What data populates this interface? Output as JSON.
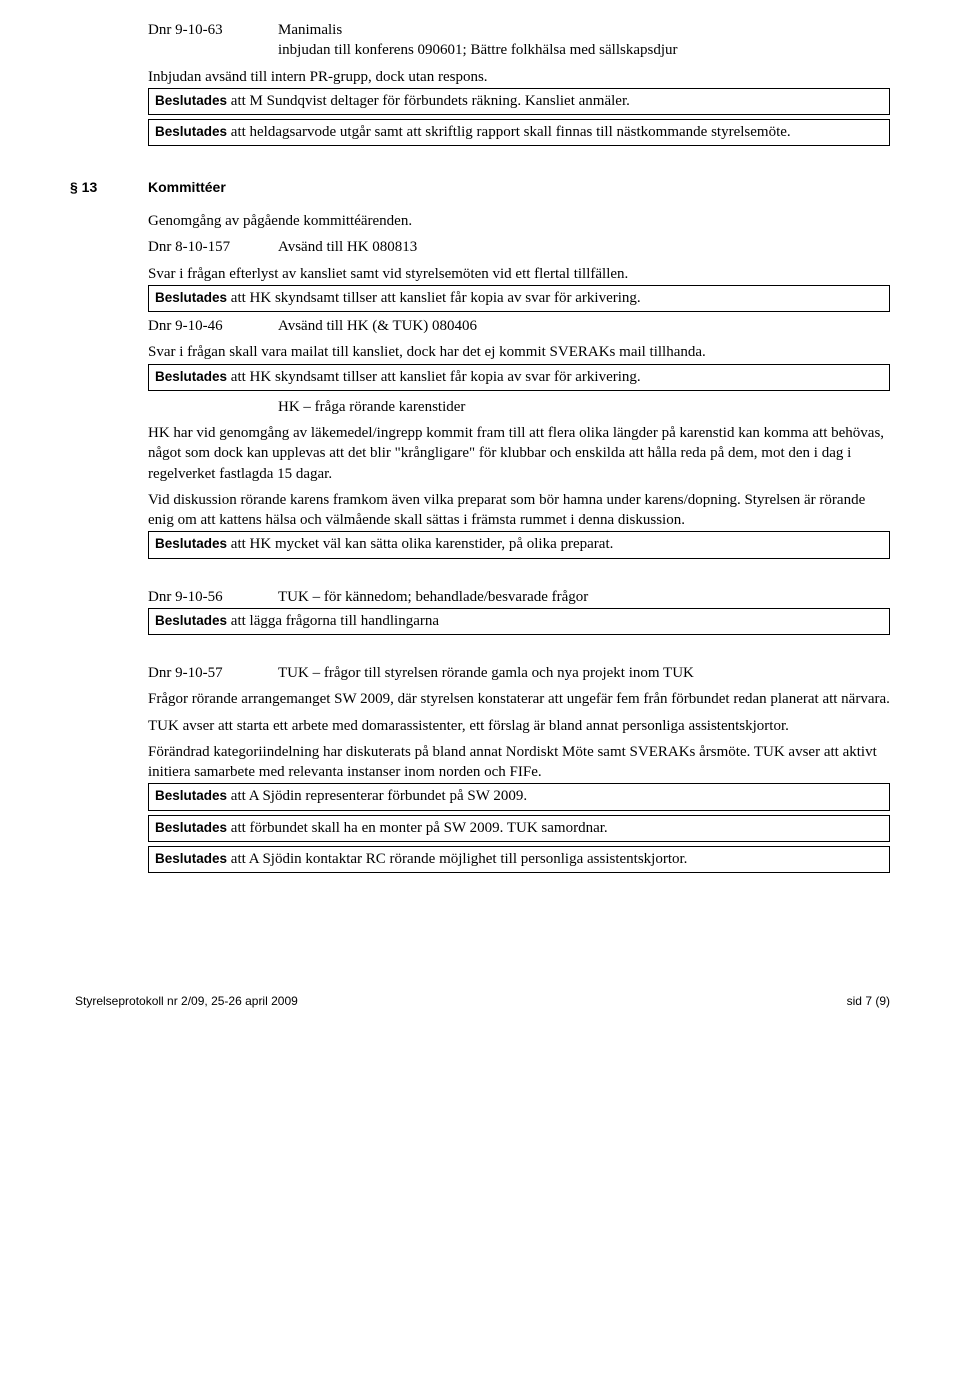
{
  "top": {
    "dnr1_code": "Dnr 9-10-63",
    "dnr1_title": "Manimalis",
    "dnr1_sub": "inbjudan till konferens 090601; Bättre folkhälsa med sällskapsdjur",
    "line1": "Inbjudan avsänd till intern PR-grupp, dock utan respons.",
    "box1_bold": "Beslutades",
    "box1_rest": " att M Sundqvist deltager för förbundets räkning. Kansliet anmäler.",
    "box2_bold": "Beslutades",
    "box2_rest": " att heldagsarvode utgår samt att skriftlig rapport skall finnas till nästkommande styrelsemöte."
  },
  "section13": {
    "num": "§ 13",
    "title": "Kommittéer",
    "p1": "Genomgång av pågående kommittéärenden.",
    "dnr2_code": "Dnr 8-10-157",
    "dnr2_text": "Avsänd till HK 080813",
    "p2": "Svar i frågan efterlyst av kansliet samt vid styrelsemöten vid ett flertal tillfällen.",
    "box3_bold": "Beslutades",
    "box3_rest": " att HK skyndsamt tillser att kansliet får kopia av svar för arkivering.",
    "dnr3_code": "Dnr 9-10-46",
    "dnr3_text": "Avsänd till HK (& TUK)  080406",
    "p3": "Svar i frågan skall vara mailat till kansliet, dock har det ej kommit SVERAKs mail tillhanda.",
    "box4_bold": "Beslutades",
    "box4_rest": " att HK skyndsamt tillser att kansliet får kopia av svar för arkivering.",
    "hk_heading": "HK – fråga rörande karenstider",
    "p4": "HK har vid genomgång av läkemedel/ingrepp kommit fram till att flera olika längder på karenstid kan komma att behövas, något som dock kan upplevas att det blir \"krångligare\" för klubbar och enskilda att hålla reda på dem, mot den i dag i regelverket fastlagda 15 dagar.",
    "p5": "Vid diskussion rörande karens framkom även vilka preparat som bör hamna under karens/dopning. Styrelsen är rörande enig om att kattens hälsa och välmående skall sättas i främsta rummet i denna diskussion.",
    "box5_bold": "Beslutades",
    "box5_rest": " att HK mycket väl kan sätta olika karenstider, på olika preparat.",
    "dnr4_code": "Dnr 9-10-56",
    "dnr4_text": "TUK – för kännedom; behandlade/besvarade frågor",
    "box6_bold": "Beslutades",
    "box6_rest": " att lägga frågorna till handlingarna",
    "dnr5_code": "Dnr 9-10-57",
    "dnr5_text": "TUK – frågor till styrelsen rörande gamla och nya projekt inom TUK",
    "p6": "Frågor rörande arrangemanget SW 2009, där styrelsen konstaterar att ungefär fem från förbundet redan planerat att närvara.",
    "p7": "TUK avser att starta ett arbete med domarassistenter, ett förslag är bland annat personliga assistentskjortor.",
    "p8": "Förändrad kategoriindelning har diskuterats på bland annat Nordiskt Möte samt SVERAKs årsmöte. TUK avser att aktivt initiera samarbete med relevanta instanser inom norden och FIFe.",
    "box7_bold": "Beslutades",
    "box7_rest": " att A Sjödin representerar förbundet på SW 2009.",
    "box8_bold": "Beslutades",
    "box8_rest": " att förbundet skall ha en monter på SW 2009. TUK samordnar.",
    "box9_bold": "Beslutades",
    "box9_rest": " att A Sjödin kontaktar RC rörande möjlighet till personliga assistentskjortor."
  },
  "footer": {
    "left": "Styrelseprotokoll nr 2/09, 25-26 april 2009",
    "right": "sid 7 (9)"
  }
}
